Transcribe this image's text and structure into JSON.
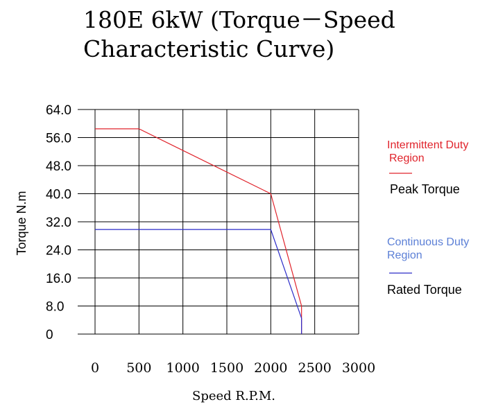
{
  "title_line1": "180E 6kW (Torque－Speed",
  "title_line2": "Characteristic Curve)",
  "chart_data": {
    "type": "line",
    "xlabel": "Speed R.P.M.",
    "ylabel": "Torque N.m",
    "xlim": [
      0,
      3000
    ],
    "ylim": [
      0,
      64
    ],
    "xticks": [
      "0",
      "500",
      "1000",
      "1500",
      "2000",
      "2500",
      "3000"
    ],
    "yticks": [
      "0",
      "8.0",
      "16.0",
      "24.0",
      "32.0",
      "40.0",
      "48.0",
      "56.0",
      "64.0"
    ],
    "grid": true,
    "legend_position": "right",
    "series": [
      {
        "legend_region": "Intermittent Duty Region",
        "name": "Peak Torque",
        "color": "#e0232b",
        "x": [
          0,
          500,
          2000,
          2350,
          2350
        ],
        "y": [
          58.5,
          58.5,
          40,
          8,
          0
        ]
      },
      {
        "legend_region": "Continuous Duty Region",
        "name": "Rated Torque",
        "color": "#2a2ac8",
        "x": [
          0,
          2000,
          2350,
          2350
        ],
        "y": [
          29.8,
          29.8,
          4.5,
          0
        ]
      }
    ]
  },
  "legend": {
    "region1": "Intermittent Duty",
    "region1_line2": "Region",
    "region2": "Continuous Duty",
    "region2_line2": "Region",
    "region1_color": "#e0232b",
    "region2_color": "#5b7fd6"
  }
}
